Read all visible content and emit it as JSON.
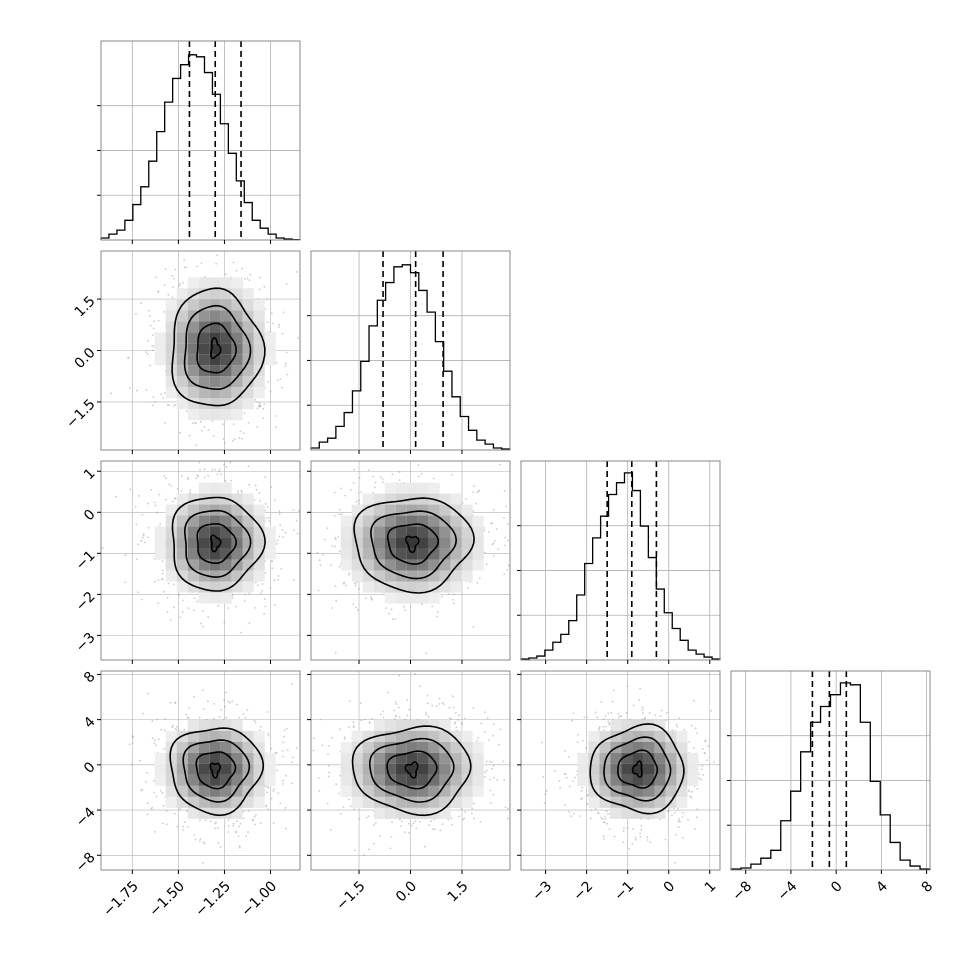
{
  "chart_data": {
    "type": "corner",
    "title": "",
    "n_params": 4,
    "grid": true,
    "histograms": [
      {
        "param": 0,
        "range": [
          -1.92,
          -0.84
        ],
        "counts": [
          0.1,
          0.3,
          0.5,
          1.0,
          1.8,
          2.7,
          4.0,
          5.5,
          7.0,
          8.2,
          8.9,
          9.4,
          9.3,
          8.5,
          7.4,
          5.9,
          4.4,
          3.0,
          1.9,
          1.0,
          0.6,
          0.3,
          0.1,
          0.05,
          0.02
        ],
        "quantiles": [
          -1.44,
          -1.3,
          -1.16
        ],
        "ymax": 10.0
      },
      {
        "param": 1,
        "range": [
          -2.9,
          2.9
        ],
        "counts": [
          0.1,
          0.4,
          0.6,
          1.2,
          1.9,
          3.0,
          4.5,
          6.3,
          7.6,
          8.5,
          9.3,
          9.4,
          9.0,
          8.1,
          7.0,
          5.5,
          4.0,
          2.7,
          1.7,
          1.0,
          0.5,
          0.3,
          0.1,
          0.05
        ],
        "quantiles": [
          -0.8,
          0.15,
          0.95
        ],
        "ymax": 10.0
      },
      {
        "param": 2,
        "range": [
          -3.6,
          1.25
        ],
        "counts": [
          0.05,
          0.1,
          0.2,
          0.5,
          0.9,
          1.3,
          2.0,
          3.3,
          4.9,
          6.2,
          7.3,
          8.4,
          9.0,
          9.5,
          8.6,
          6.8,
          5.2,
          3.6,
          2.4,
          1.6,
          1.0,
          0.5,
          0.3,
          0.15,
          0.05
        ],
        "quantiles": [
          -1.5,
          -0.9,
          -0.3
        ],
        "ymax": 10.0
      },
      {
        "param": 3,
        "range": [
          -9.3,
          8.3
        ],
        "counts": [
          0.05,
          0.1,
          0.3,
          0.6,
          1.0,
          2.5,
          4.0,
          6.0,
          7.5,
          8.3,
          8.9,
          9.5,
          9.4,
          7.5,
          4.5,
          2.8,
          1.4,
          0.5,
          0.2,
          0.05
        ],
        "quantiles": [
          -2.1,
          -0.6,
          0.9
        ],
        "ymax": 10.0
      }
    ],
    "panel_ranges": [
      {
        "x": [
          -1.92,
          -0.84
        ]
      },
      {
        "x": [
          -2.9,
          2.9
        ]
      },
      {
        "x": [
          -3.6,
          1.25
        ]
      },
      {
        "x": [
          -9.3,
          8.3
        ]
      }
    ],
    "joint_centers": [
      -1.3,
      0.05,
      -0.75,
      -0.4
    ],
    "joint_sigmas": [
      0.13,
      0.9,
      0.6,
      2.0
    ],
    "x_ticks": [
      [
        -1.75,
        -1.5,
        -1.25,
        -1.0
      ],
      [
        -1.5,
        0.0,
        1.5
      ],
      [
        -3,
        -2,
        -1,
        0,
        1
      ],
      [
        -8,
        -4,
        0,
        4,
        8
      ]
    ],
    "x_tick_labels": [
      [
        "−1.75",
        "−1.50",
        "−1.25",
        "−1.00"
      ],
      [
        "−1.5",
        "0.0",
        "1.5"
      ],
      [
        "−3",
        "−2",
        "−1",
        "0",
        "1"
      ],
      [
        "−8",
        "−4",
        "0",
        "4",
        "8"
      ]
    ],
    "y_ticks": [
      null,
      [
        1.5,
        0.0,
        -1.5
      ],
      [
        1,
        0,
        -1,
        -2,
        -3
      ],
      [
        8,
        4,
        0,
        -4,
        -8
      ]
    ],
    "y_tick_labels": [
      null,
      [
        "1.5",
        "0.0",
        "−1.5"
      ],
      [
        "1",
        "0",
        "−1",
        "−2",
        "−3"
      ],
      [
        "8",
        "4",
        "0",
        "−4",
        "−8"
      ]
    ],
    "colors": {
      "line": "#000000",
      "grid": "#b0b0b0",
      "scatter": "#9a9a9a"
    }
  }
}
